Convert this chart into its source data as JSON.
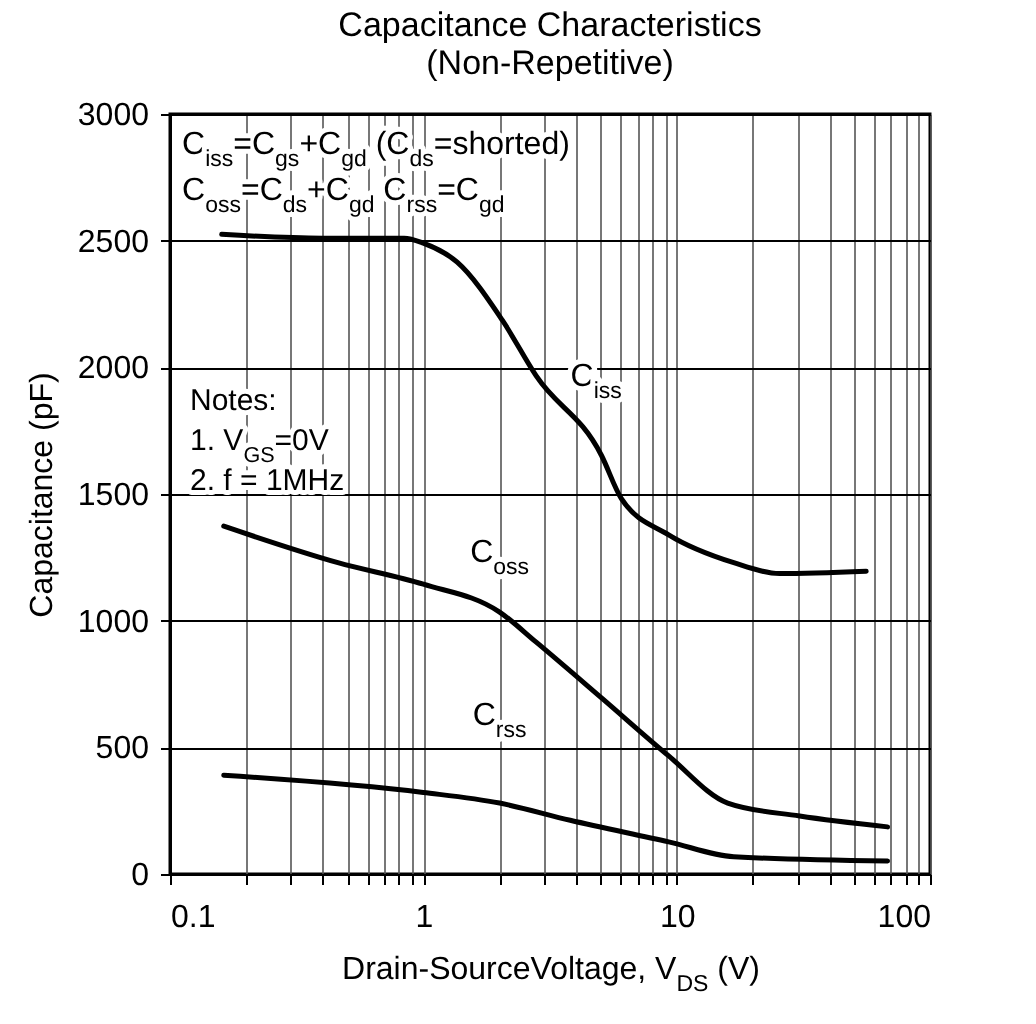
{
  "chart_data": {
    "type": "line",
    "title": "Capacitance Characteristics",
    "subtitle": "(Non-Repetitive)",
    "xlabel": "Drain-SourceVoltage, V$_{DS}$ (V)",
    "ylabel": "Capacitance (pF)",
    "log": "x",
    "grid": true,
    "legend": false,
    "marker": "none",
    "line_style": "solid",
    "xlim": [
      0.1,
      100
    ],
    "ylim": [
      0,
      3000
    ],
    "xticks": [
      0.1,
      {
        "value": 0.2,
        "label": null
      },
      {
        "value": 0.3,
        "label": null
      },
      {
        "value": 0.4,
        "label": null
      },
      {
        "value": 0.5,
        "label": null
      },
      {
        "value": 0.6,
        "label": null
      },
      {
        "value": 0.7,
        "label": null
      },
      {
        "value": 0.8,
        "label": null
      },
      {
        "value": 0.9,
        "label": null
      },
      1,
      {
        "value": 2,
        "label": null
      },
      {
        "value": 3,
        "label": null
      },
      {
        "value": 4,
        "label": null
      },
      {
        "value": 5,
        "label": null
      },
      {
        "value": 6,
        "label": null
      },
      {
        "value": 7,
        "label": null
      },
      {
        "value": 8,
        "label": null
      },
      {
        "value": 9,
        "label": null
      },
      10,
      {
        "value": 20,
        "label": null
      },
      {
        "value": 30,
        "label": null
      },
      {
        "value": 40,
        "label": null
      },
      {
        "value": 50,
        "label": null
      },
      {
        "value": 60,
        "label": null
      },
      {
        "value": 70,
        "label": null
      },
      {
        "value": 80,
        "label": null
      },
      {
        "value": 90,
        "label": null
      },
      100
    ],
    "yticks": [
      0,
      500,
      1000,
      1500,
      2000,
      2500,
      3000
    ],
    "annotations": [
      "C$_{iss}$=C$_{gs}$+C$_{gd}$ (C$_{ds}$=shorted)",
      "C$_{oss}$=C$_{ds}$+C$_{gd}$   C$_{rss}$=C$_{gd}$",
      "Notes:",
      "1. V$_{GS}$=0V",
      "2. f = 1MHz"
    ],
    "series": [
      {
        "name": "C$_{iss}$",
        "color": "#000000",
        "x": [
          0.16,
          0.4,
          0.84,
          1.0,
          1.36,
          2.05,
          2.79,
          5.05,
          6.04,
          9.3,
          16.8,
          25.5,
          56
        ],
        "values": [
          2525,
          2510,
          2510,
          2490,
          2415,
          2186,
          1966,
          1652,
          1483,
          1339,
          1229,
          1186,
          1195
        ]
      },
      {
        "name": "C$_{oss}$",
        "color": "#000000",
        "x": [
          0.163,
          0.46,
          1.0,
          2.0,
          2.79,
          5.05,
          9.3,
          15.9,
          30.6,
          68
        ],
        "values": [
          1373,
          1229,
          1144,
          1034,
          915,
          695,
          466,
          280,
          229,
          186
        ]
      },
      {
        "name": "C$_{rss}$",
        "color": "#000000",
        "x": [
          0.163,
          1.0,
          2.0,
          3.8,
          9.3,
          16.8,
          68
        ],
        "values": [
          390,
          322,
          280,
          212,
          127,
          68,
          51
        ]
      }
    ]
  }
}
